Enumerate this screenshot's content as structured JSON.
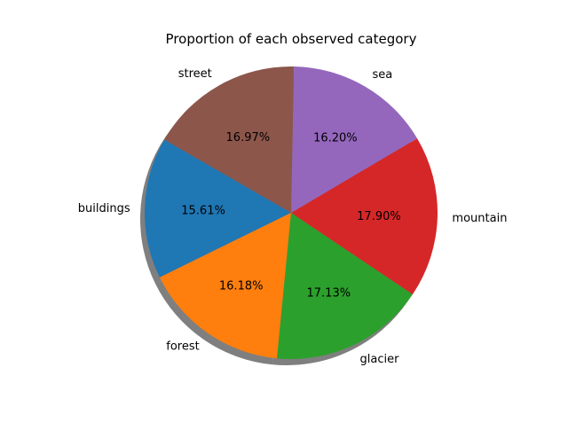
{
  "chart_data": {
    "type": "pie",
    "title": "Proportion of each observed category",
    "labels": [
      "buildings",
      "forest",
      "glacier",
      "mountain",
      "sea",
      "street"
    ],
    "values": [
      15.61,
      16.18,
      17.13,
      17.9,
      16.2,
      16.97
    ],
    "value_labels": [
      "15.61%",
      "16.18%",
      "17.13%",
      "17.90%",
      "16.20%",
      "16.97%"
    ],
    "colors": [
      "#1f77b4",
      "#ff7f0e",
      "#2ca02c",
      "#d62728",
      "#9467bd",
      "#8c564b"
    ],
    "start_angle_deg": 150,
    "shadow": true,
    "legend": "none"
  }
}
